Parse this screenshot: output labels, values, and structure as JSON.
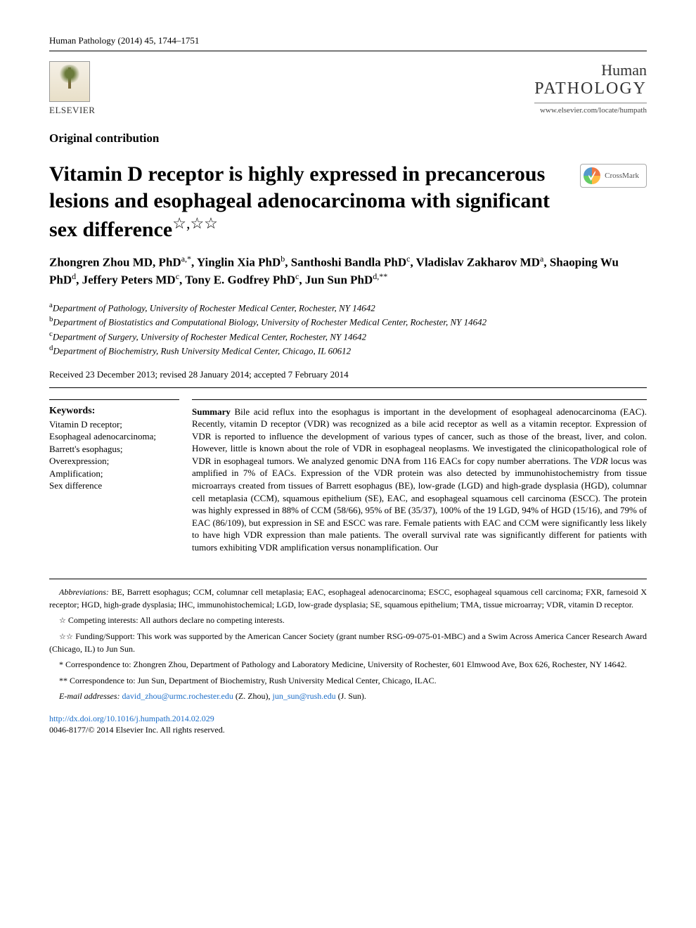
{
  "journal_ref": "Human Pathology (2014) 45, 1744–1751",
  "publisher": {
    "name": "ELSEVIER"
  },
  "journal_brand": {
    "line1": "Human",
    "line2": "PATHOLOGY",
    "url": "www.elsevier.com/locate/humpath"
  },
  "contribution_type": "Original contribution",
  "title_main": "Vitamin D receptor is highly expressed in precancerous lesions and esophageal adenocarcinoma with significant sex difference",
  "title_stars": "☆,☆☆",
  "crossmark_label": "CrossMark",
  "authors_html": "Zhongren Zhou MD, PhD<sup>a,*</sup>, Yinglin Xia PhD<sup>b</sup>, Santhoshi Bandla PhD<sup>c</sup>, Vladislav Zakharov MD<sup>a</sup>, Shaoping Wu PhD<sup>d</sup>, Jeffery Peters MD<sup>c</sup>, Tony E. Godfrey PhD<sup>c</sup>, Jun Sun PhD<sup>d,**</sup>",
  "affiliations": {
    "a": "Department of Pathology, University of Rochester Medical Center, Rochester, NY 14642",
    "b": "Department of Biostatistics and Computational Biology, University of Rochester Medical Center, Rochester, NY 14642",
    "c": "Department of Surgery, University of Rochester Medical Center, Rochester, NY 14642",
    "d": "Department of Biochemistry, Rush University Medical Center, Chicago, IL 60612"
  },
  "received": "Received 23 December 2013; revised 28 January 2014; accepted 7 February 2014",
  "keywords": {
    "heading": "Keywords:",
    "items": "Vitamin D receptor;\nEsophageal adenocarcinoma;\nBarrett's esophagus;\nOverexpression;\nAmplification;\nSex difference"
  },
  "summary": {
    "heading": "Summary",
    "text": "Bile acid reflux into the esophagus is important in the development of esophageal adenocarcinoma (EAC). Recently, vitamin D receptor (VDR) was recognized as a bile acid receptor as well as a vitamin receptor. Expression of VDR is reported to influence the development of various types of cancer, such as those of the breast, liver, and colon. However, little is known about the role of VDR in esophageal neoplasms. We investigated the clinicopathological role of VDR in esophageal tumors. We analyzed genomic DNA from 116 EACs for copy number aberrations. The VDR locus was amplified in 7% of EACs. Expression of the VDR protein was also detected by immunohistochemistry from tissue microarrays created from tissues of Barrett esophagus (BE), low-grade (LGD) and high-grade dysplasia (HGD), columnar cell metaplasia (CCM), squamous epithelium (SE), EAC, and esophageal squamous cell carcinoma (ESCC). The protein was highly expressed in 88% of CCM (58/66), 95% of BE (35/37), 100% of the 19 LGD, 94% of HGD (15/16), and 79% of EAC (86/109), but expression in SE and ESCC was rare. Female patients with EAC and CCM were significantly less likely to have high VDR expression than male patients. The overall survival rate was significantly different for patients with tumors exhibiting VDR amplification versus nonamplification. Our"
  },
  "abbreviations": {
    "label": "Abbreviations:",
    "text": "BE, Barrett esophagus; CCM, columnar cell metaplasia; EAC, esophageal adenocarcinoma; ESCC, esophageal squamous cell carcinoma; FXR, farnesoid X receptor; HGD, high-grade dysplasia; IHC, immunohistochemical; LGD, low-grade dysplasia; SE, squamous epithelium; TMA, tissue microarray; VDR, vitamin D receptor."
  },
  "footnote_competing": {
    "symbol": "☆",
    "text": "Competing interests: All authors declare no competing interests."
  },
  "footnote_funding": {
    "symbol": "☆☆",
    "text": "Funding/Support: This work was supported by the American Cancer Society (grant number RSG-09-075-01-MBC) and a Swim Across America Cancer Research Award (Chicago, IL) to Jun Sun."
  },
  "corr1": {
    "symbol": "*",
    "text": "Correspondence to: Zhongren Zhou, Department of Pathology and Laboratory Medicine, University of Rochester, 601 Elmwood Ave, Box 626, Rochester, NY 14642."
  },
  "corr2": {
    "symbol": "**",
    "text": "Correspondence to: Jun Sun, Department of Biochemistry, Rush University Medical Center, Chicago, ILAC."
  },
  "emails": {
    "label": "E-mail addresses:",
    "e1": "david_zhou@urmc.rochester.edu",
    "e1_name": "(Z. Zhou),",
    "e2": "jun_sun@rush.edu",
    "e2_name": "(J. Sun)."
  },
  "doi": {
    "url": "http://dx.doi.org/10.1016/j.humpath.2014.02.029",
    "copyright": "0046-8177/© 2014 Elsevier Inc. All rights reserved."
  },
  "colors": {
    "link": "#1a6cc7",
    "text": "#000000",
    "border": "#000000"
  },
  "typography": {
    "title_fontsize_pt": 22,
    "author_fontsize_pt": 13,
    "body_fontsize_pt": 10,
    "footnote_fontsize_pt": 9,
    "font_family": "Times New Roman, serif"
  }
}
